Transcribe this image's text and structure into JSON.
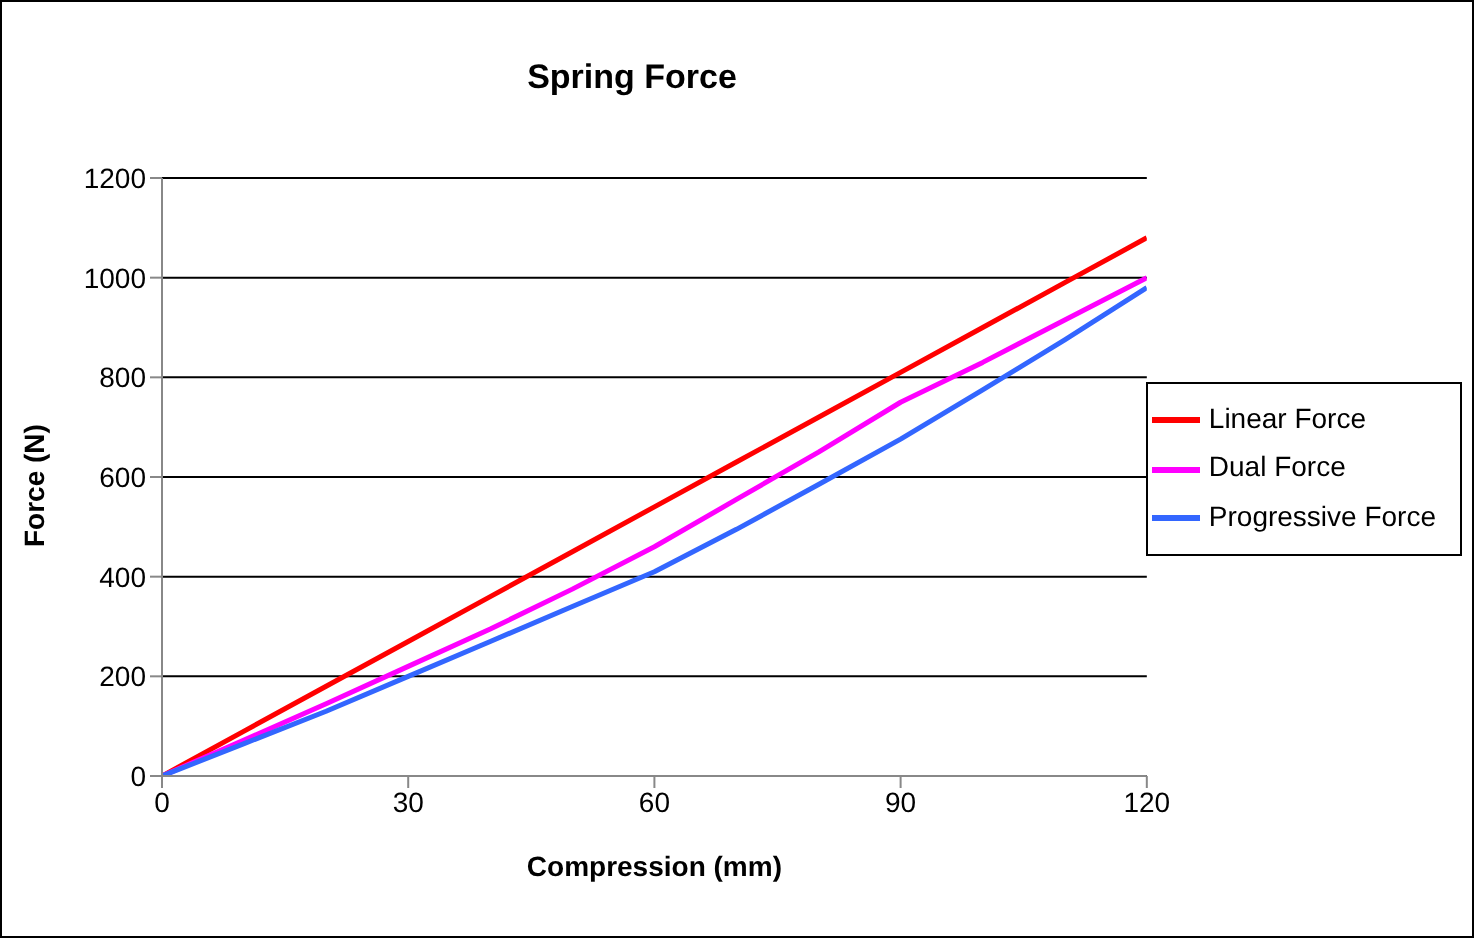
{
  "chart_data": {
    "type": "line",
    "title": "Spring Force",
    "xlabel": "Compression (mm)",
    "ylabel": "Force (N)",
    "x": [
      0,
      10,
      20,
      30,
      40,
      50,
      60,
      70,
      80,
      90,
      100,
      110,
      120
    ],
    "series": [
      {
        "name": "Linear Force",
        "color": "#ff0000",
        "values": [
          0,
          90,
          180,
          270,
          360,
          450,
          540,
          630,
          720,
          810,
          900,
          990,
          1080
        ]
      },
      {
        "name": "Dual Force",
        "color": "#ff00ff",
        "values": [
          0,
          72,
          145,
          220,
          295,
          375,
          460,
          555,
          650,
          750,
          830,
          915,
          1000
        ]
      },
      {
        "name": "Progressive Force",
        "color": "#3366ff",
        "values": [
          0,
          65,
          130,
          200,
          270,
          340,
          410,
          495,
          585,
          676,
          775,
          875,
          980
        ]
      }
    ],
    "xlim": [
      0,
      120
    ],
    "xticks": [
      0,
      30,
      60,
      90,
      120
    ],
    "ylim": [
      0,
      1200
    ],
    "yticks": [
      0,
      200,
      400,
      600,
      800,
      1000,
      1200
    ],
    "grid": "y",
    "legend": "right",
    "marker": "none",
    "line_style": "solid"
  }
}
